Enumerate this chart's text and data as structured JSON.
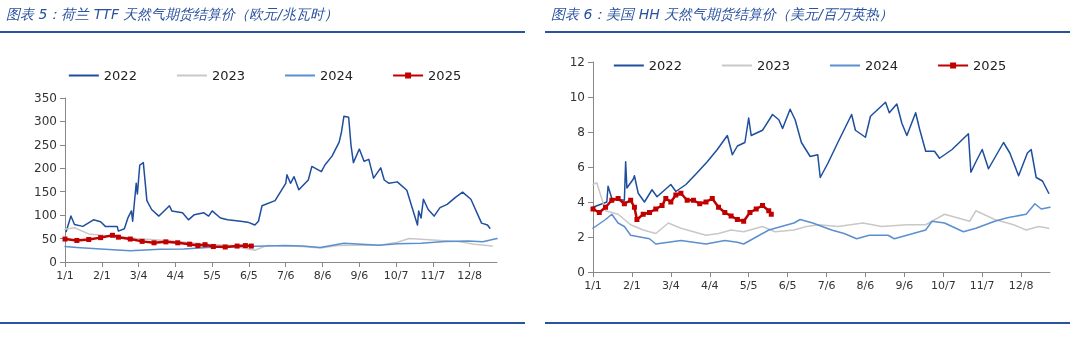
{
  "chart_data": [
    {
      "type": "line",
      "title": "图表 5：荷兰 TTF 天然气期货结算价（欧元/兆瓦时）",
      "legend": "top",
      "marker": "none",
      "line_style": "solid",
      "grid": false,
      "xlim": [
        "--01-01",
        "--12-31"
      ],
      "xticks": [
        {
          "value": "--01-01",
          "label": "1/1"
        },
        {
          "value": "--02-01",
          "label": "2/1"
        },
        {
          "value": "--03-04",
          "label": "3/4"
        },
        {
          "value": "--04-04",
          "label": "4/4"
        },
        {
          "value": "--05-05",
          "label": "5/5"
        },
        {
          "value": "--06-05",
          "label": "6/5"
        },
        {
          "value": "--07-06",
          "label": "7/6"
        },
        {
          "value": "--08-06",
          "label": "8/6"
        },
        {
          "value": "--09-06",
          "label": "9/6"
        },
        {
          "value": "--10-07",
          "label": "10/7"
        },
        {
          "value": "--11-07",
          "label": "11/7"
        },
        {
          "value": "--12-08",
          "label": "12/8"
        }
      ],
      "ylim": [
        0,
        350
      ],
      "yticks": [
        0,
        50,
        100,
        150,
        200,
        250,
        300,
        350
      ],
      "series": [
        {
          "name": "2022",
          "color": "#1f4e9e",
          "x": [
            "--01-02",
            "--01-06",
            "--01-09",
            "--01-16",
            "--01-25",
            "--01-31",
            "--02-04",
            "--02-14",
            "--02-15",
            "--02-20",
            "--02-23",
            "--02-26",
            "--02-27",
            "--03-02",
            "--03-03",
            "--03-05",
            "--03-08",
            "--03-11",
            "--03-15",
            "--03-21",
            "--03-24",
            "--03-30",
            "--04-01",
            "--04-10",
            "--04-15",
            "--04-20",
            "--04-28",
            "--05-02",
            "--05-05",
            "--05-12",
            "--05-18",
            "--05-29",
            "--06-04",
            "--06-10",
            "--06-13",
            "--06-16",
            "--06-27",
            "--07-06",
            "--07-07",
            "--07-10",
            "--07-13",
            "--07-17",
            "--07-25",
            "--07-28",
            "--08-05",
            "--08-08",
            "--08-14",
            "--08-20",
            "--08-22",
            "--08-24",
            "--08-28",
            "--08-30",
            "--09-01",
            "--09-06",
            "--09-10",
            "--09-14",
            "--09-18",
            "--09-24",
            "--09-27",
            "--10-01",
            "--10-08",
            "--10-16",
            "--10-25",
            "--10-26",
            "--10-28",
            "--10-30",
            "--11-03",
            "--11-08",
            "--11-13",
            "--11-19",
            "--11-26",
            "--12-02",
            "--12-09",
            "--12-18",
            "--12-23",
            "--12-25"
          ],
          "values": [
            65,
            98,
            80,
            76,
            90,
            86,
            76,
            76,
            66,
            71,
            94,
            109,
            87,
            168,
            145,
            207,
            212,
            131,
            112,
            98,
            105,
            120,
            109,
            105,
            90,
            101,
            105,
            98,
            109,
            94,
            90,
            87,
            85,
            79,
            87,
            120,
            131,
            168,
            186,
            168,
            182,
            154,
            175,
            204,
            193,
            207,
            226,
            256,
            278,
            311,
            309,
            249,
            212,
            241,
            215,
            219,
            179,
            201,
            175,
            168,
            171,
            153,
            79,
            109,
            94,
            134,
            112,
            98,
            116,
            123,
            138,
            149,
            134,
            83,
            79,
            72
          ]
        },
        {
          "name": "2023",
          "color": "#c8c8c8",
          "x": [
            "--01-01",
            "--01-09",
            "--01-21",
            "--02-10",
            "--03-02",
            "--04-01",
            "--05-01",
            "--05-21",
            "--05-31",
            "--06-10",
            "--06-20",
            "--07-20",
            "--08-04",
            "--08-19",
            "--09-03",
            "--09-23",
            "--10-08",
            "--10-18",
            "--11-07",
            "--11-27",
            "--12-12",
            "--12-27"
          ],
          "values": [
            70,
            73,
            60,
            55,
            50,
            45,
            38,
            35,
            30,
            25,
            35,
            33,
            30,
            35,
            36,
            36,
            42,
            50,
            47,
            44,
            38,
            34
          ]
        },
        {
          "name": "2024",
          "color": "#5b8fd0",
          "x": [
            "--01-01",
            "--01-11",
            "--01-31",
            "--02-25",
            "--03-22",
            "--04-11",
            "--05-01",
            "--05-31",
            "--06-20",
            "--07-05",
            "--07-20",
            "--08-04",
            "--08-24",
            "--09-08",
            "--09-23",
            "--10-08",
            "--10-28",
            "--11-17",
            "--12-07",
            "--12-19",
            "--12-31"
          ],
          "values": [
            33,
            31,
            28,
            24,
            27,
            28,
            31,
            33,
            34,
            35,
            34,
            31,
            40,
            38,
            36,
            39,
            40,
            44,
            45,
            43,
            50
          ]
        },
        {
          "name": "2025",
          "color": "#c00000",
          "marker": "square",
          "x": [
            "--01-01",
            "--01-11",
            "--01-21",
            "--01-31",
            "--02-10",
            "--02-15",
            "--02-25",
            "--03-07",
            "--03-17",
            "--03-27",
            "--04-06",
            "--04-16",
            "--04-23",
            "--04-29",
            "--05-06",
            "--05-16",
            "--05-26",
            "--06-02",
            "--06-07"
          ],
          "values": [
            49,
            46,
            48,
            52,
            57,
            53,
            49,
            44,
            41,
            43,
            41,
            38,
            35,
            37,
            33,
            32,
            34,
            35,
            34
          ]
        }
      ]
    },
    {
      "type": "line",
      "title": "图表 6：美国 HH 天然气期货结算价（美元/百万英热）",
      "legend": "top",
      "marker": "none",
      "line_style": "solid",
      "grid": false,
      "xlim": [
        "--01-01",
        "--12-31"
      ],
      "xticks": [
        {
          "value": "--01-01",
          "label": "1/1"
        },
        {
          "value": "--02-01",
          "label": "2/1"
        },
        {
          "value": "--03-04",
          "label": "3/4"
        },
        {
          "value": "--04-04",
          "label": "4/4"
        },
        {
          "value": "--05-05",
          "label": "5/5"
        },
        {
          "value": "--06-05",
          "label": "6/5"
        },
        {
          "value": "--07-06",
          "label": "7/6"
        },
        {
          "value": "--08-06",
          "label": "8/6"
        },
        {
          "value": "--09-06",
          "label": "9/6"
        },
        {
          "value": "--10-07",
          "label": "10/7"
        },
        {
          "value": "--11-07",
          "label": "11/7"
        },
        {
          "value": "--12-08",
          "label": "12/8"
        }
      ],
      "ylim": [
        0,
        12
      ],
      "yticks": [
        0,
        2,
        4,
        6,
        8,
        10,
        12
      ],
      "series": [
        {
          "name": "2022",
          "color": "#1f4e9e",
          "x": [
            "--01-01",
            "--01-12",
            "--01-13",
            "--01-16",
            "--01-26",
            "--01-27",
            "--01-28",
            "--02-02",
            "--02-03",
            "--02-06",
            "--02-11",
            "--02-17",
            "--02-21",
            "--03-04",
            "--03-08",
            "--03-16",
            "--03-24",
            "--04-02",
            "--04-10",
            "--04-18",
            "--04-22",
            "--04-26",
            "--05-02",
            "--05-05",
            "--05-07",
            "--05-16",
            "--05-24",
            "--05-29",
            "--06-01",
            "--06-07",
            "--06-11",
            "--06-16",
            "--06-23",
            "--06-29",
            "--07-01",
            "--07-07",
            "--07-15",
            "--07-26",
            "--07-29",
            "--08-06",
            "--08-10",
            "--08-22",
            "--08-25",
            "--08-31",
            "--09-04",
            "--09-08",
            "--09-15",
            "--09-18",
            "--09-23",
            "--09-30",
            "--10-04",
            "--10-14",
            "--10-27",
            "--10-29",
            "--11-02",
            "--11-07",
            "--11-12",
            "--11-24",
            "--11-29",
            "--12-06",
            "--12-13",
            "--12-16",
            "--12-20",
            "--12-25",
            "--12-30"
          ],
          "values": [
            3.7,
            4.0,
            4.9,
            4.2,
            4.1,
            6.3,
            4.8,
            5.3,
            5.5,
            4.5,
            4.0,
            4.7,
            4.3,
            5.0,
            4.6,
            5.0,
            5.6,
            6.3,
            7.0,
            7.8,
            6.7,
            7.2,
            7.4,
            8.8,
            7.8,
            8.1,
            9.0,
            8.7,
            8.2,
            9.3,
            8.7,
            7.4,
            6.6,
            6.7,
            5.4,
            6.2,
            7.4,
            9.0,
            8.1,
            7.7,
            8.9,
            9.7,
            9.1,
            9.6,
            8.5,
            7.8,
            9.1,
            8.2,
            6.9,
            6.9,
            6.5,
            7.0,
            7.9,
            5.7,
            6.3,
            7.0,
            5.9,
            7.4,
            6.8,
            5.5,
            6.8,
            7.0,
            5.4,
            5.2,
            4.5
          ]
        },
        {
          "name": "2023",
          "color": "#c8c8c8",
          "x": [
            "--01-01",
            "--01-04",
            "--01-11",
            "--01-21",
            "--01-31",
            "--02-10",
            "--02-20",
            "--03-02",
            "--03-12",
            "--03-22",
            "--04-01",
            "--04-11",
            "--04-21",
            "--05-01",
            "--05-16",
            "--05-26",
            "--06-10",
            "--06-20",
            "--06-30",
            "--07-15",
            "--08-04",
            "--08-19",
            "--09-08",
            "--09-23",
            "--10-08",
            "--10-18",
            "--10-28",
            "--11-02",
            "--11-17",
            "--12-02",
            "--12-12",
            "--12-22",
            "--12-30"
          ],
          "values": [
            5.0,
            5.1,
            3.5,
            3.3,
            2.7,
            2.4,
            2.2,
            2.8,
            2.5,
            2.3,
            2.1,
            2.2,
            2.4,
            2.3,
            2.6,
            2.3,
            2.4,
            2.6,
            2.7,
            2.6,
            2.8,
            2.6,
            2.7,
            2.7,
            3.3,
            3.1,
            2.9,
            3.5,
            3.0,
            2.7,
            2.4,
            2.6,
            2.5
          ]
        },
        {
          "name": "2024",
          "color": "#5b8fd0",
          "x": [
            "--01-01",
            "--01-11",
            "--01-16",
            "--01-21",
            "--01-26",
            "--01-31",
            "--02-15",
            "--02-20",
            "--03-12",
            "--04-01",
            "--04-16",
            "--04-26",
            "--05-01",
            "--05-11",
            "--05-21",
            "--05-31",
            "--06-10",
            "--06-15",
            "--06-25",
            "--07-10",
            "--07-20",
            "--07-30",
            "--08-09",
            "--08-24",
            "--08-29",
            "--09-13",
            "--09-23",
            "--09-28",
            "--10-08",
            "--10-23",
            "--11-02",
            "--11-17",
            "--11-27",
            "--12-12",
            "--12-19",
            "--12-24",
            "--12-31"
          ],
          "values": [
            2.5,
            3.0,
            3.3,
            2.8,
            2.6,
            2.1,
            1.9,
            1.6,
            1.8,
            1.6,
            1.8,
            1.7,
            1.6,
            2.0,
            2.4,
            2.6,
            2.8,
            3.0,
            2.8,
            2.4,
            2.2,
            1.9,
            2.1,
            2.1,
            1.9,
            2.2,
            2.4,
            2.9,
            2.8,
            2.3,
            2.5,
            2.9,
            3.1,
            3.3,
            3.9,
            3.6,
            3.7
          ]
        },
        {
          "name": "2025",
          "color": "#c00000",
          "marker": "square",
          "x": [
            "--01-01",
            "--01-06",
            "--01-11",
            "--01-16",
            "--01-21",
            "--01-26",
            "--01-31",
            "--02-03",
            "--02-05",
            "--02-10",
            "--02-15",
            "--02-20",
            "--02-25",
            "--02-28",
            "--03-04",
            "--03-08",
            "--03-12",
            "--03-17",
            "--03-22",
            "--03-27",
            "--04-01",
            "--04-06",
            "--04-11",
            "--04-16",
            "--04-21",
            "--04-26",
            "--05-01",
            "--05-06",
            "--05-11",
            "--05-16",
            "--05-21",
            "--05-23"
          ],
          "values": [
            3.6,
            3.4,
            3.7,
            4.1,
            4.2,
            3.9,
            4.1,
            3.7,
            3.0,
            3.3,
            3.4,
            3.6,
            3.8,
            4.2,
            4.0,
            4.4,
            4.5,
            4.1,
            4.1,
            3.9,
            4.0,
            4.2,
            3.7,
            3.4,
            3.2,
            3.0,
            2.9,
            3.4,
            3.6,
            3.8,
            3.5,
            3.3
          ]
        }
      ]
    }
  ]
}
